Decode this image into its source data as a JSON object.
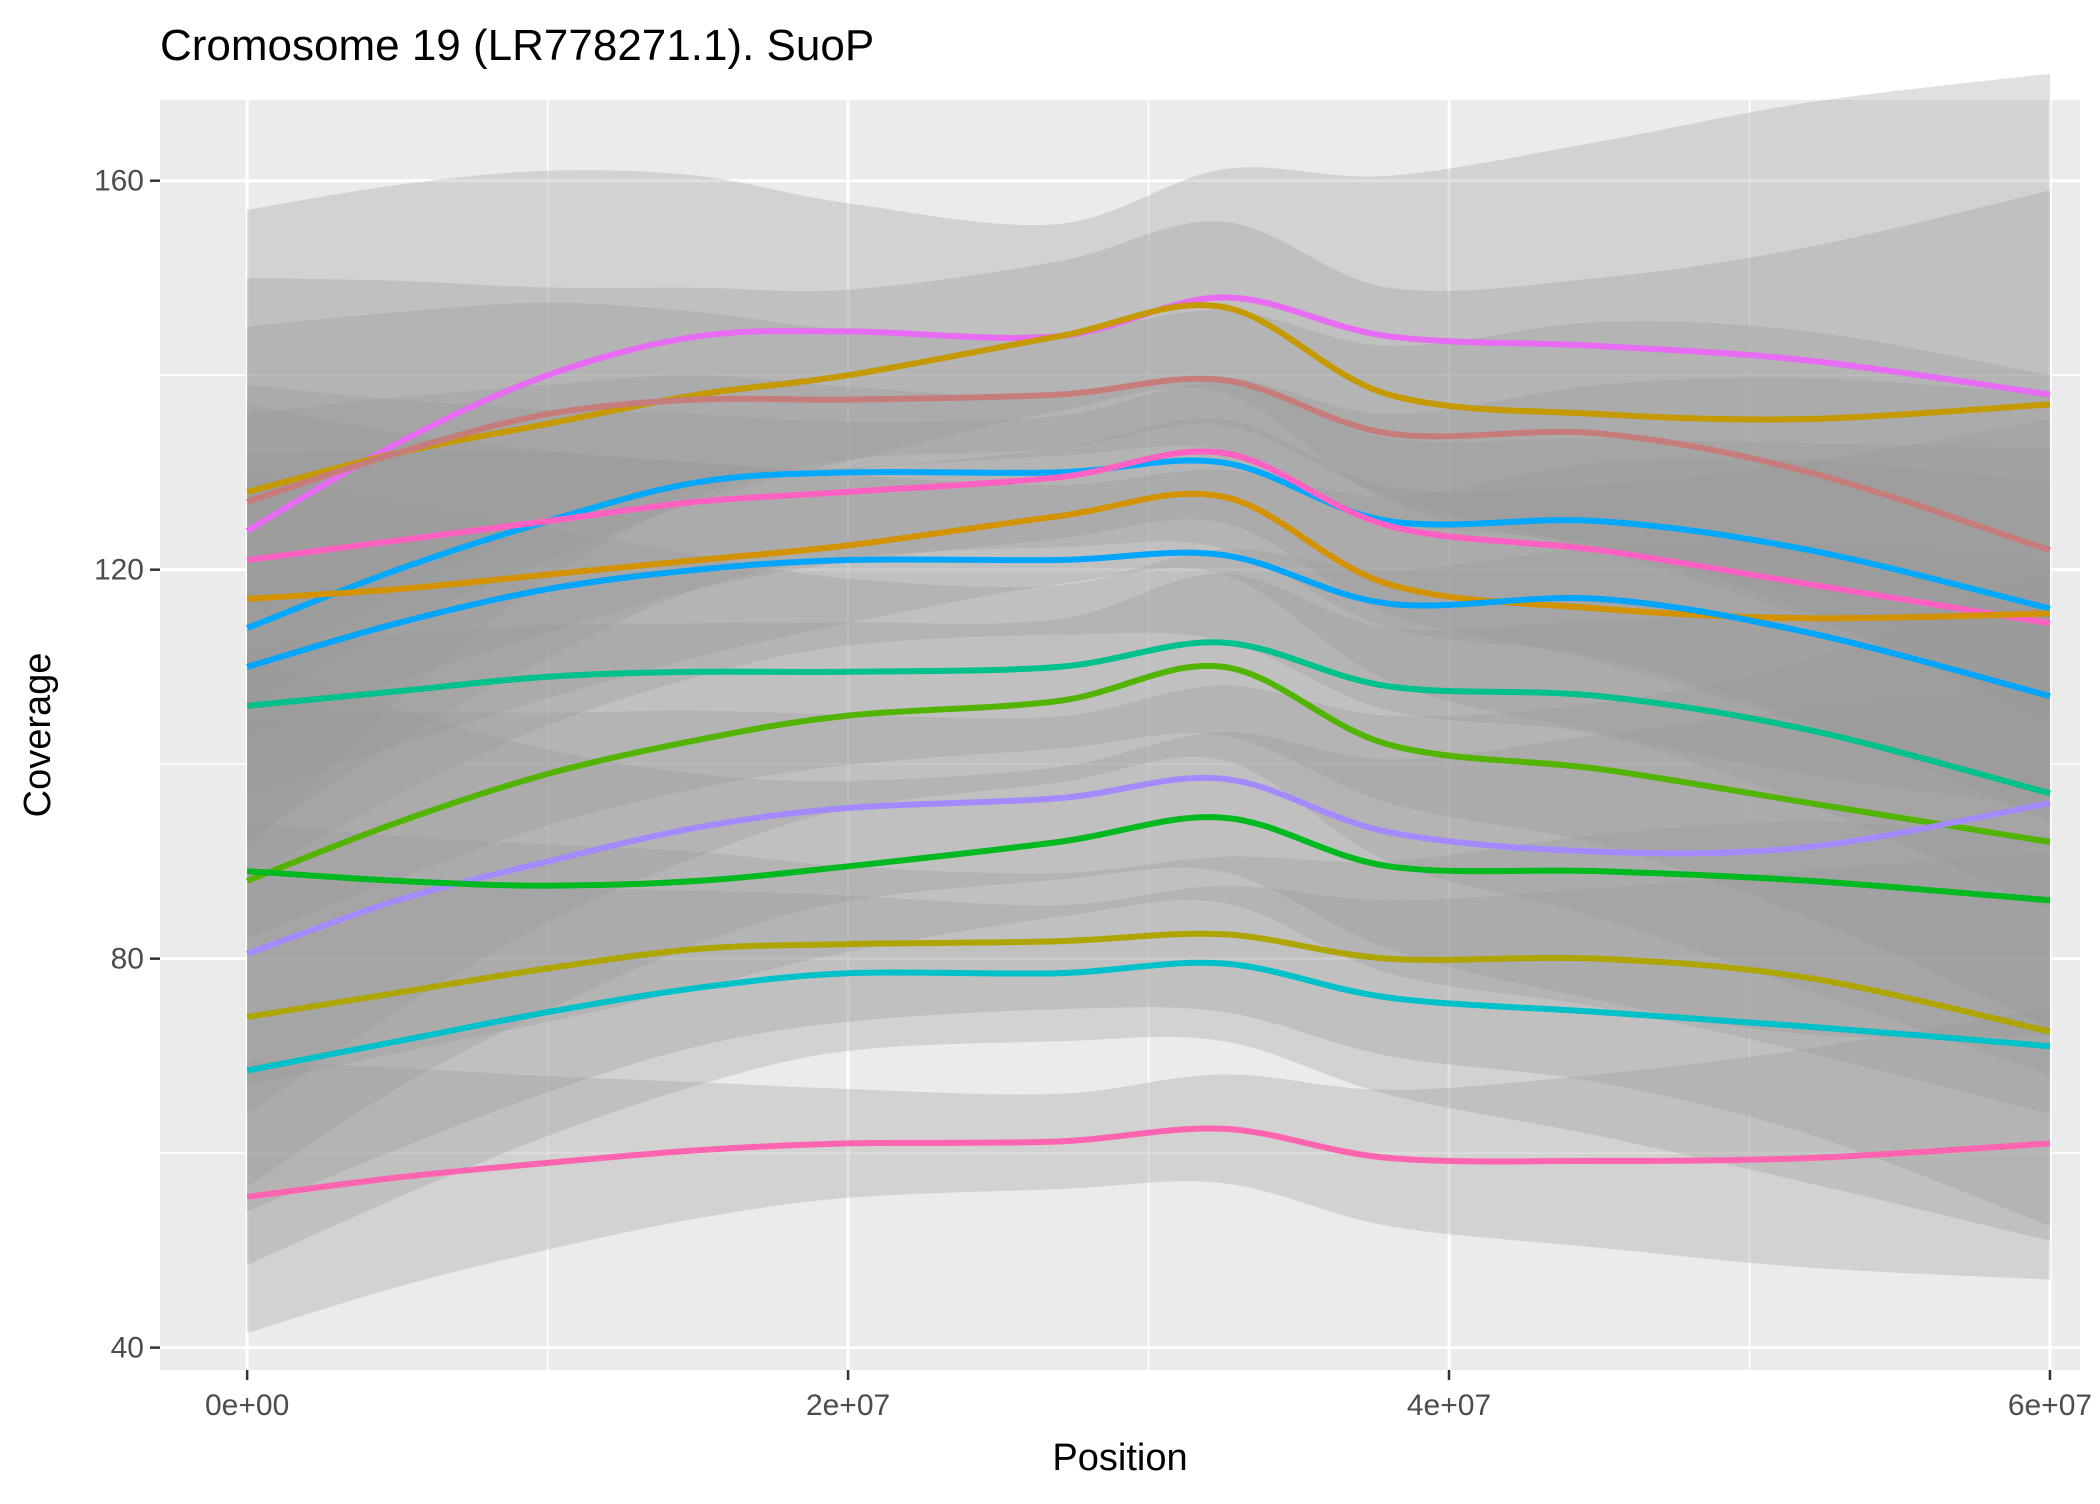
{
  "chart_data": {
    "type": "line",
    "title": "Cromosome 19 (LR778271.1). SuoP",
    "xlabel": "Position",
    "ylabel": "Coverage",
    "xlim": [
      -2900000,
      61000000
    ],
    "ylim": [
      37700,
      168300
    ],
    "x_ticks": [
      0,
      20000000,
      40000000,
      60000000
    ],
    "x_tick_labels": [
      "0e+00",
      "2e+07",
      "4e+07",
      "6e+07"
    ],
    "y_ticks": [
      40,
      80,
      120,
      160
    ],
    "y_tick_labels": [
      "40",
      "80",
      "120",
      "160"
    ],
    "grid": true,
    "legend": "none",
    "style": {
      "panel_background": "#ebebeb",
      "grid_color": "#ffffff",
      "ribbon_color": "#999999",
      "text_color": "#000000",
      "tick_label_color": "#4d4d4d"
    },
    "x": [
      0,
      5000000,
      10000000,
      15000000,
      20000000,
      27000000,
      32500000,
      38000000,
      45000000,
      52000000,
      60000000
    ],
    "series": [
      {
        "color": "#e76bf3",
        "values": [
          124,
          133,
          140,
          144,
          144.5,
          144,
          148,
          144,
          143,
          141.5,
          138
        ],
        "ribbon": 33
      },
      {
        "color": "#c49a00",
        "values": [
          128,
          132,
          135,
          138,
          140,
          144,
          147,
          138,
          136,
          135.5,
          137
        ],
        "ribbon": 22
      },
      {
        "color": "#c77c7c",
        "values": [
          127,
          132,
          136,
          137.5,
          137.5,
          138,
          139.5,
          134,
          134,
          130,
          122
        ],
        "ribbon": 18
      },
      {
        "color": "#00a9ff",
        "values": [
          114,
          120,
          125,
          129,
          130,
          130,
          131,
          125,
          125,
          122,
          116
        ],
        "ribbon": 22
      },
      {
        "color": "#ff61c3",
        "values": [
          121,
          123,
          125,
          127,
          128,
          129.5,
          132,
          124.5,
          122,
          118.5,
          114.5
        ],
        "ribbon": 18
      },
      {
        "color": "#d39200",
        "values": [
          117,
          118,
          119.5,
          121,
          122.5,
          125.5,
          127.5,
          118.5,
          116,
          115,
          115.5
        ],
        "ribbon": 20
      },
      {
        "color": "#00a5ff",
        "values": [
          110,
          114.5,
          118,
          120,
          121,
          121,
          121.5,
          116.5,
          117,
          113.5,
          107
        ],
        "ribbon": 22
      },
      {
        "color": "#00c08b",
        "values": [
          106,
          107.5,
          109,
          109.5,
          109.5,
          110,
          112.5,
          108,
          107,
          103.5,
          97
        ],
        "ribbon": 24
      },
      {
        "color": "#53b400",
        "values": [
          88,
          94,
          99,
          102.5,
          105,
          106.5,
          110,
          102,
          99.5,
          96,
          92
        ],
        "ribbon": 24
      },
      {
        "color": "#a58aff",
        "values": [
          80.5,
          86,
          90,
          93.5,
          95.5,
          96.5,
          98.5,
          93,
          91,
          91.5,
          96
        ],
        "ribbon": 24
      },
      {
        "color": "#00b81f",
        "values": [
          89,
          88,
          87.5,
          88,
          89.5,
          92,
          94.5,
          89.5,
          89,
          88,
          86
        ],
        "ribbon": 22
      },
      {
        "color": "#aea500",
        "values": [
          74,
          76.5,
          79,
          81,
          81.5,
          81.8,
          82.5,
          80,
          80,
          78,
          72.5
        ],
        "ribbon": 20
      },
      {
        "color": "#00c1c9",
        "values": [
          68.5,
          71.5,
          74.5,
          77,
          78.5,
          78.5,
          79.5,
          76,
          74.5,
          73,
          71
        ],
        "ribbon": 20
      },
      {
        "color": "#ff64b0",
        "values": [
          55.5,
          57.5,
          59,
          60.3,
          61,
          61.2,
          62.5,
          59.5,
          59.2,
          59.5,
          61
        ],
        "ribbon": 14
      }
    ]
  }
}
